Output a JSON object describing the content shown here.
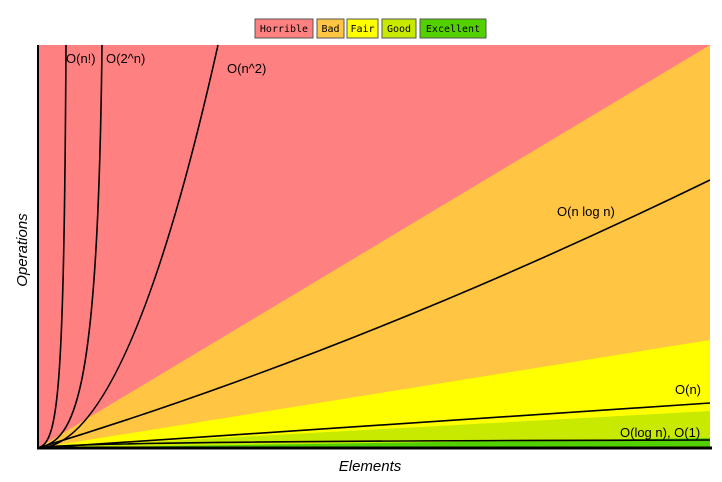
{
  "legend": {
    "items": [
      "Horrible",
      "Bad",
      "Fair",
      "Good",
      "Excellent"
    ]
  },
  "curves": {
    "labels": [
      "O(n!)",
      "O(2^n)",
      "O(n^2)",
      "O(n log n)",
      "O(n)",
      "O(log n), O(1)"
    ]
  },
  "axes": {
    "y_label": "Operations",
    "x_label": "Elements"
  }
}
